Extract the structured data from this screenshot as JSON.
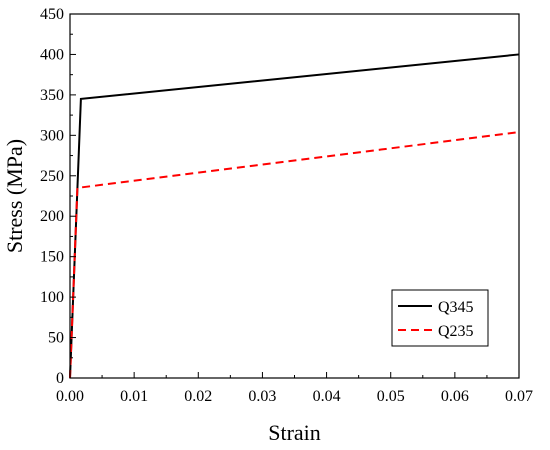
{
  "chart_data": {
    "type": "line",
    "title": "",
    "xlabel": "Strain",
    "ylabel": "Stress (MPa)",
    "xlim": [
      0,
      0.07
    ],
    "ylim": [
      0,
      450
    ],
    "xticks": [
      "0.00",
      "0.01",
      "0.02",
      "0.03",
      "0.04",
      "0.05",
      "0.06",
      "0.07"
    ],
    "yticks": [
      "0",
      "50",
      "100",
      "150",
      "200",
      "250",
      "300",
      "350",
      "400",
      "450"
    ],
    "grid": false,
    "legend_position": "bottom-right",
    "series": [
      {
        "name": "Q345",
        "color": "#000000",
        "style": "solid",
        "x": [
          0,
          0.0017,
          0.07
        ],
        "y": [
          0,
          345,
          400
        ]
      },
      {
        "name": "Q235",
        "color": "#ff0000",
        "style": "dashed",
        "x": [
          0,
          0.00115,
          0.07
        ],
        "y": [
          0,
          235,
          304
        ]
      }
    ]
  }
}
